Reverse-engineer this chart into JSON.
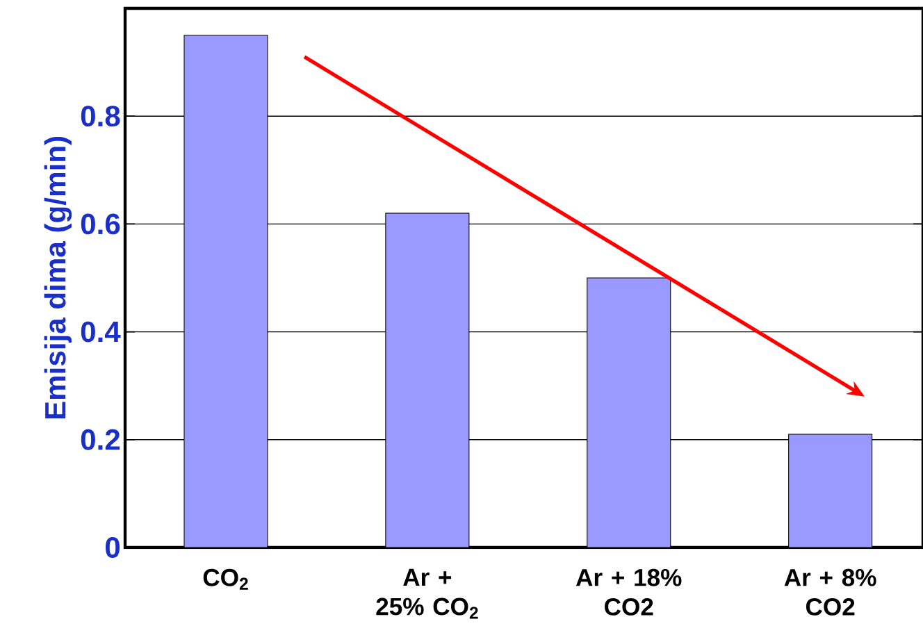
{
  "chart_data": {
    "type": "bar",
    "ylabel": "Emisija dima (g/min)",
    "categories": [
      "CO$_{2}$",
      "Ar + 25% CO$_{2}$",
      "Ar + 18% CO2",
      "Ar + 8% CO2"
    ],
    "values": [
      0.95,
      0.62,
      0.5,
      0.21
    ],
    "color": "#9999ff",
    "ylim": [
      0,
      1
    ],
    "yticks": [
      0,
      0.2,
      0.4,
      0.6,
      0.8,
      {
        "value": 1,
        "label": null
      }
    ],
    "grid": "y"
  }
}
